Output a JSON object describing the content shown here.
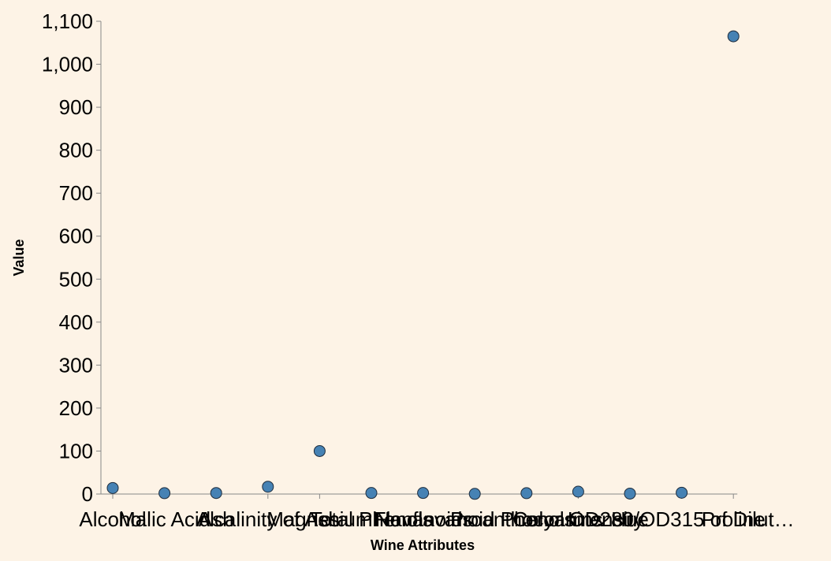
{
  "chart_data": {
    "type": "scatter",
    "xlabel": "Wine Attributes",
    "ylabel": "Value",
    "ylim": [
      0,
      1100
    ],
    "yticks": [
      0,
      100,
      200,
      300,
      400,
      500,
      600,
      700,
      800,
      900,
      1000,
      1100
    ],
    "ytick_labels": [
      "0",
      "100",
      "200",
      "300",
      "400",
      "500",
      "600",
      "700",
      "800",
      "900",
      "1,000",
      "1,100"
    ],
    "grid": false,
    "categories": [
      "Alcohol",
      "Malic Acid",
      "Ash",
      "Alcalinity of Ash",
      "Magnesium",
      "Total Phenols",
      "Flavanoids",
      "Nonflavanoid Phenols",
      "Proanthocyanins",
      "Color Intensity",
      "Hue",
      "OD280/OD315 of Dilut…",
      "Proline"
    ],
    "values": [
      14,
      2,
      2.4,
      17,
      100,
      2.5,
      2.5,
      0.4,
      2,
      5.5,
      1,
      3,
      1065
    ],
    "point_color": "#4682b4",
    "background": "#fdf3e6"
  }
}
